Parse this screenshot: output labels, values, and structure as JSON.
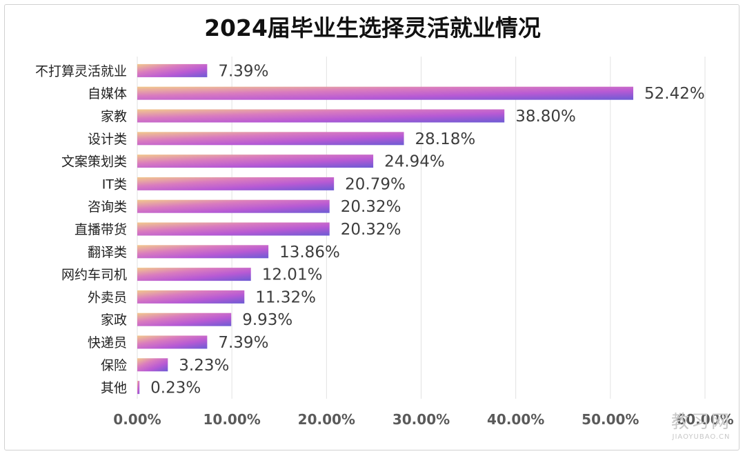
{
  "chart_data": {
    "type": "bar",
    "orientation": "horizontal",
    "title": "2024届毕业生选择灵活就业情况",
    "categories": [
      "不打算灵活就业",
      "自媒体",
      "家教",
      "设计类",
      "文案策划类",
      "IT类",
      "咨询类",
      "直播带货",
      "翻译类",
      "网约车司机",
      "外卖员",
      "家政",
      "快递员",
      "保险",
      "其他"
    ],
    "values": [
      7.39,
      52.42,
      38.8,
      28.18,
      24.94,
      20.79,
      20.32,
      20.32,
      13.86,
      12.01,
      11.32,
      9.93,
      7.39,
      3.23,
      0.23
    ],
    "value_labels": [
      "7.39%",
      "52.42%",
      "38.80%",
      "28.18%",
      "24.94%",
      "20.79%",
      "20.32%",
      "20.32%",
      "13.86%",
      "12.01%",
      "11.32%",
      "9.93%",
      "7.39%",
      "3.23%",
      "0.23%"
    ],
    "xlim": [
      0,
      60
    ],
    "x_ticks": [
      0,
      10,
      20,
      30,
      40,
      50,
      60
    ],
    "x_tick_labels": [
      "0.00%",
      "10.00%",
      "20.00%",
      "30.00%",
      "40.00%",
      "50.00%",
      "60.00%"
    ],
    "grid": true,
    "legend": "none",
    "colors": {
      "bar_gradient": [
        "#f2c98c",
        "#d97bbf",
        "#b85ad4",
        "#6c5bd4"
      ],
      "grid": "#e2e2e2"
    }
  },
  "watermark": {
    "main": "教习网",
    "sub": "JIAOYUBAO.CN"
  }
}
